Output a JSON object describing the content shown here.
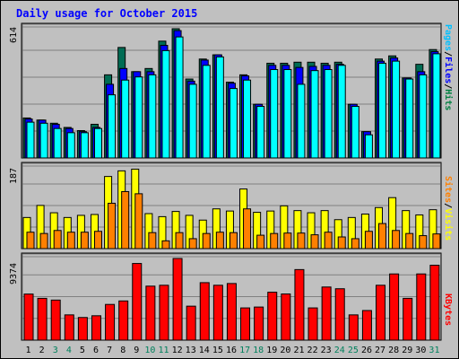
{
  "chart_data": {
    "title": "Daily usage for October 2015",
    "type": "bar",
    "days": [
      1,
      2,
      3,
      4,
      5,
      6,
      7,
      8,
      9,
      10,
      11,
      12,
      13,
      14,
      15,
      16,
      17,
      18,
      19,
      20,
      21,
      22,
      23,
      24,
      25,
      26,
      27,
      28,
      29,
      30,
      31
    ],
    "weekend_days": [
      3,
      4,
      10,
      11,
      17,
      18,
      24,
      25,
      31
    ],
    "colors": {
      "hits": "#006c54",
      "files": "#0000ff",
      "pages": "#00ffff",
      "visits": "#ffff00",
      "sites": "#ff8000",
      "kbytes": "#ff0000",
      "weekday_label": "#000000",
      "weekend_label": "#00805c",
      "plot_bg": "#c0c0c0",
      "grid": "#808080"
    },
    "panels": [
      {
        "id": "hits",
        "ymax_label": "614",
        "ymax": 614,
        "labels": [
          "Pages",
          "/",
          "Files",
          "/",
          "Hits"
        ],
        "series": [
          {
            "name": "Hits",
            "values": [
              190,
              180,
              165,
              145,
              130,
              160,
              395,
              525,
              410,
              425,
              555,
              614,
              375,
              470,
              490,
              360,
              395,
              255,
              450,
              450,
              455,
              455,
              450,
              455,
              255,
              125,
              470,
              485,
              380,
              445,
              515
            ]
          },
          {
            "name": "Files",
            "values": [
              185,
              180,
              160,
              140,
              125,
              145,
              350,
              425,
              410,
              410,
              535,
              605,
              365,
              465,
              490,
              355,
              390,
              255,
              440,
              440,
              430,
              435,
              440,
              445,
              255,
              125,
              460,
              475,
              380,
              410,
              505
            ]
          },
          {
            "name": "Pages",
            "values": [
              170,
              165,
              140,
              120,
              120,
              140,
              300,
              370,
              385,
              395,
              510,
              575,
              350,
              440,
              480,
              330,
              370,
              245,
              420,
              420,
              350,
              415,
              420,
              440,
              245,
              110,
              450,
              460,
              375,
              395,
              495
            ]
          }
        ]
      },
      {
        "id": "visits",
        "ymax_label": "187",
        "ymax": 187,
        "labels": [
          "Sites",
          "/",
          "Visits"
        ],
        "series": [
          {
            "name": "Visits",
            "values": [
              72,
              100,
              83,
              72,
              77,
              79,
              167,
              180,
              184,
              81,
              74,
              86,
              77,
              66,
              92,
              87,
              138,
              84,
              87,
              99,
              88,
              83,
              88,
              67,
              72,
              80,
              95,
              118,
              88,
              78,
              90
            ]
          },
          {
            "name": "Sites",
            "values": [
              38,
              35,
              42,
              38,
              38,
              40,
              105,
              132,
              127,
              37,
              18,
              37,
              23,
              35,
              38,
              37,
              92,
              31,
              35,
              36,
              36,
              32,
              38,
              27,
              23,
              40,
              58,
              42,
              35,
              30,
              34
            ]
          }
        ]
      },
      {
        "id": "kbytes",
        "ymax_label": "9374",
        "ymax": 9374,
        "labels": [
          "KBytes"
        ],
        "series": [
          {
            "name": "KBytes",
            "values": [
              5290,
              4800,
              4600,
              2900,
              2600,
              2800,
              4100,
              4500,
              8800,
              6200,
              6300,
              9374,
              3900,
              6600,
              6300,
              6500,
              3700,
              3800,
              5500,
              5300,
              8100,
              3700,
              6100,
              5900,
              2900,
              3400,
              6300,
              7600,
              4800,
              7600,
              8600
            ]
          }
        ]
      }
    ]
  }
}
